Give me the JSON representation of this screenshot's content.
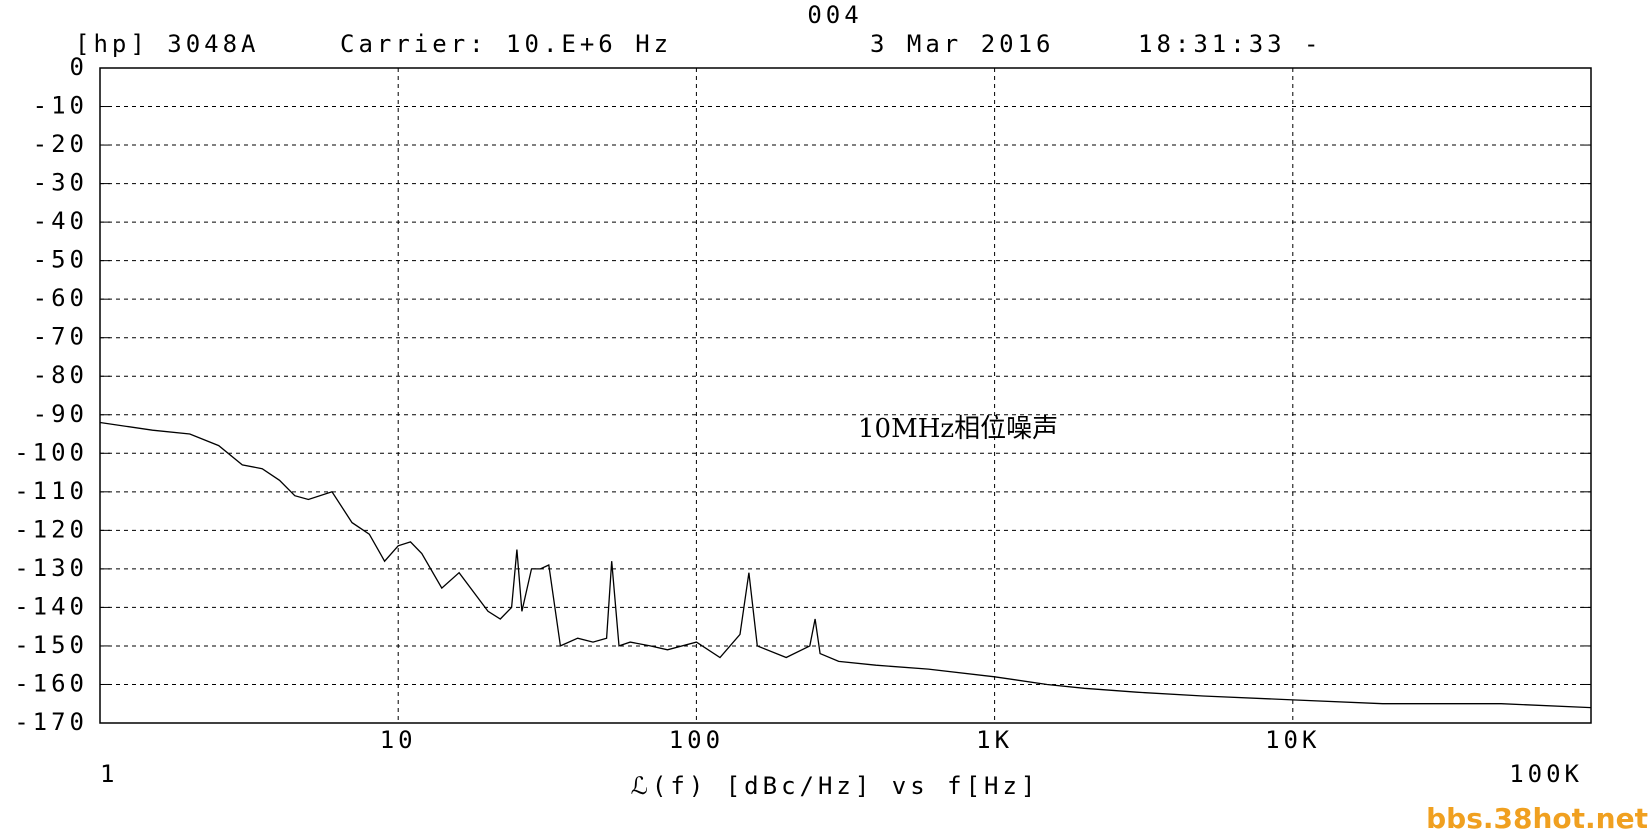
{
  "chart_data": {
    "type": "line",
    "title": "004",
    "header": [
      "[hp] 3048A",
      "Carrier: 10.E+6 Hz",
      "3 Mar 2016",
      "18:31:33 -"
    ],
    "xlabel": "ℒ(f) [dBc/Hz] vs f[Hz]",
    "annotation": "10MHz相位噪声",
    "watermark": "bbs.38hot.net",
    "xscale": "log",
    "xlim": [
      1,
      100000
    ],
    "xticks": [
      1,
      10,
      100,
      {
        "value": 1000,
        "label": "1K"
      },
      {
        "value": 10000,
        "label": "10K"
      },
      {
        "value": 100000,
        "label": "100K"
      }
    ],
    "ylim": [
      -170,
      0
    ],
    "yticks": [
      0,
      -10,
      -20,
      -30,
      -40,
      -50,
      -60,
      -70,
      -80,
      -90,
      -100,
      -110,
      -120,
      -130,
      -140,
      -150,
      -160,
      -170
    ],
    "grid": true,
    "color": "#000000",
    "x": [
      1,
      1.5,
      2,
      2.5,
      3,
      3.5,
      4,
      4.5,
      5,
      6,
      7,
      8,
      9,
      10,
      11,
      12,
      14,
      16,
      20,
      22,
      24,
      25,
      26,
      28,
      30,
      32,
      35,
      40,
      45,
      50,
      52,
      55,
      60,
      70,
      80,
      100,
      120,
      140,
      150,
      160,
      200,
      240,
      250,
      260,
      300,
      400,
      600,
      1000,
      1500,
      2000,
      3000,
      5000,
      10000,
      20000,
      50000,
      100000
    ],
    "values": [
      -92,
      -94,
      -95,
      -98,
      -103,
      -104,
      -107,
      -111,
      -112,
      -110,
      -118,
      -121,
      -128,
      -124,
      -123,
      -126,
      -135,
      -131,
      -141,
      -143,
      -140,
      -125,
      -141,
      -130,
      -130,
      -129,
      -150,
      -148,
      -149,
      -148,
      -128,
      -150,
      -149,
      -150,
      -151,
      -149,
      -153,
      -147,
      -131,
      -150,
      -153,
      -150,
      -143,
      -152,
      -154,
      -155,
      -156,
      -158,
      -160,
      -161,
      -162,
      -163,
      -164,
      -165,
      -165,
      -166
    ]
  }
}
